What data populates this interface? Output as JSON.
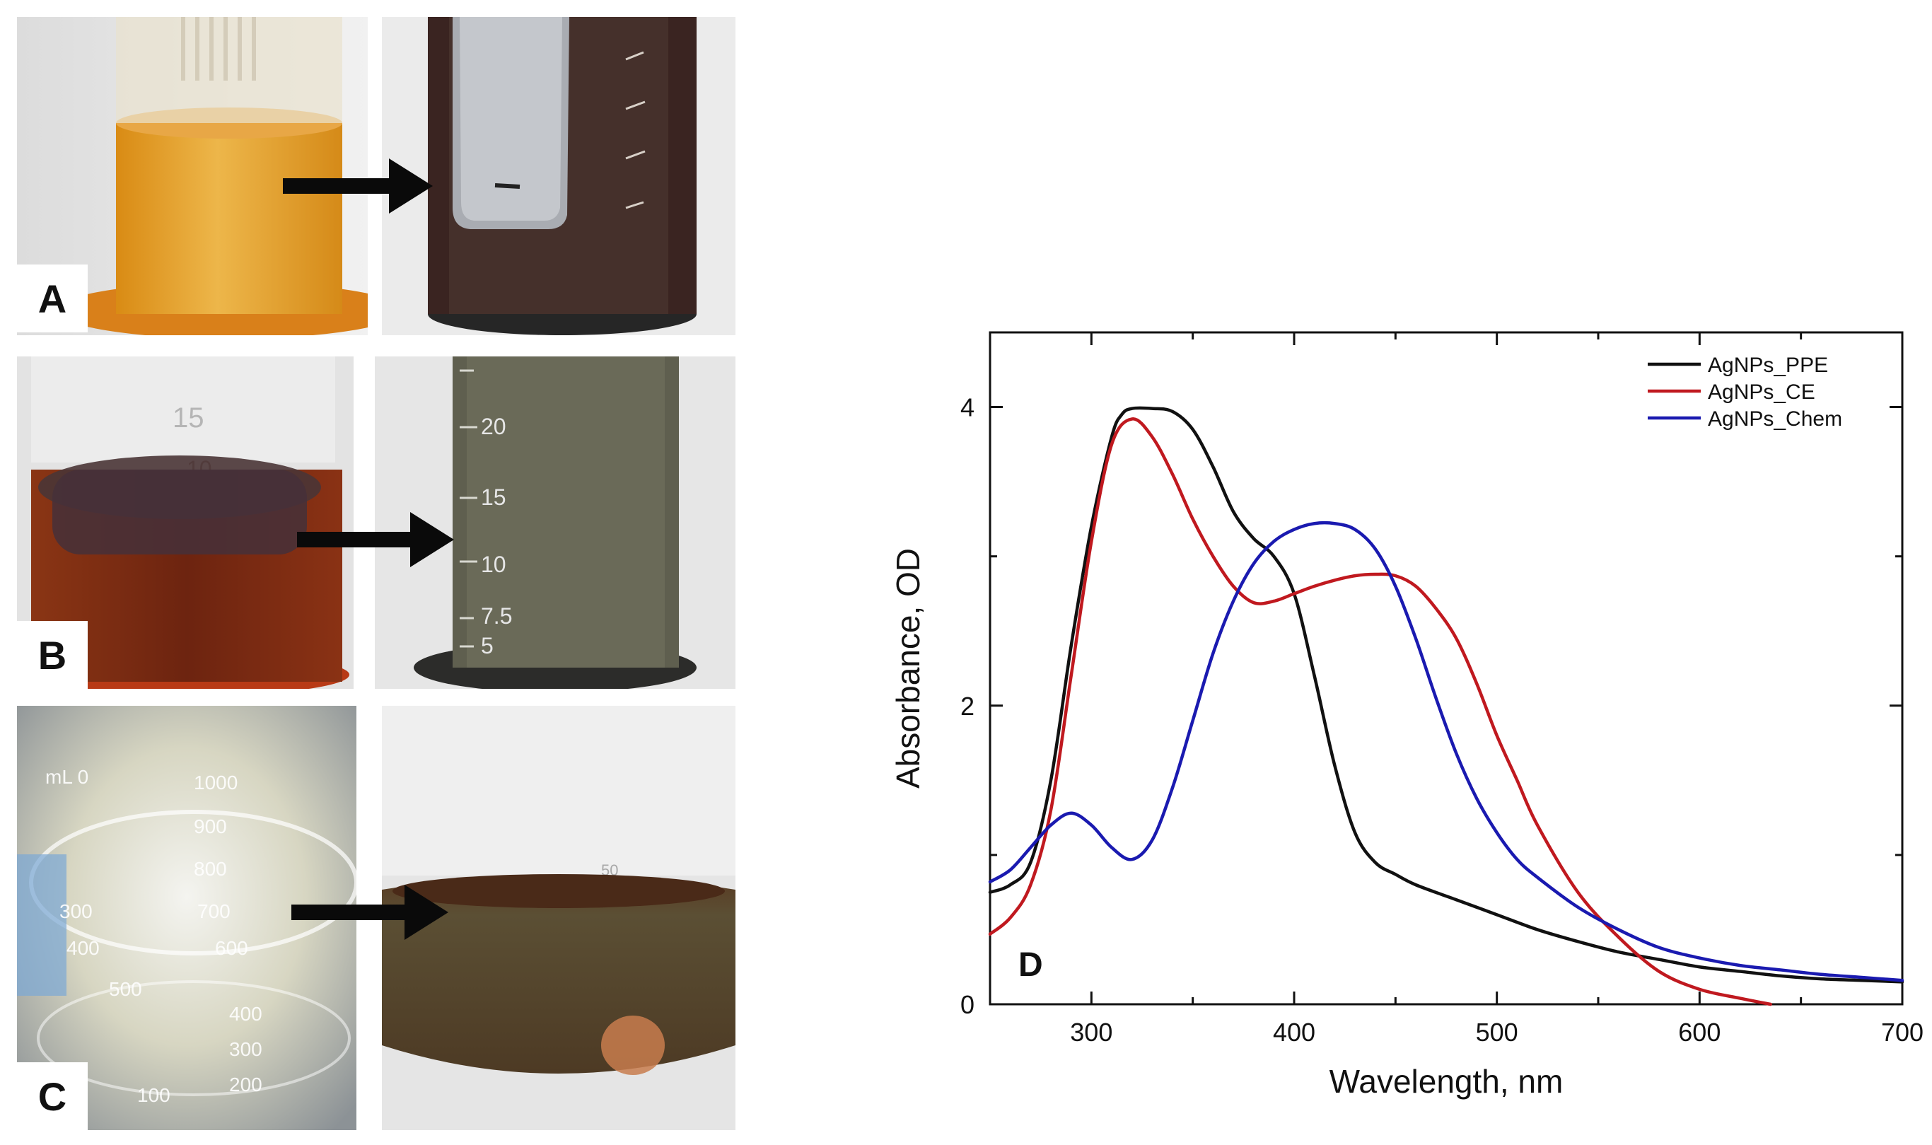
{
  "panels": {
    "A": "A",
    "B": "B",
    "C": "C",
    "D": "D"
  },
  "photo_text": {
    "b_left_grad": "15",
    "b_left_grad2": "10",
    "b_right_grads": [
      "20",
      "15",
      "10",
      "7.5",
      "5"
    ],
    "c_left_grads": [
      "mL 0",
      "1000",
      "900",
      "800",
      "700",
      "600",
      "300",
      "400",
      "500",
      "400",
      "300",
      "200",
      "100"
    ],
    "c_right_grad": "50"
  },
  "colors": {
    "ppe": "#111111",
    "ce": "#c0191f",
    "chem": "#1a1ab0",
    "orange_liquid": "#e39a1c",
    "dark_liquid": "#3b2420",
    "brown_liquid": "#7a2c12",
    "olive_liquid": "#5a5a48",
    "clear_liquid": "#d9d6b8",
    "olive_brown_liquid": "#5b4a30"
  },
  "chart_data": {
    "type": "line",
    "xlabel": "Wavelength, nm",
    "ylabel": "Absorbance, OD",
    "xlim": [
      250,
      700
    ],
    "ylim": [
      0,
      4.5
    ],
    "xticks": [
      300,
      400,
      500,
      600,
      700
    ],
    "yticks": [
      0,
      2,
      4
    ],
    "x_minor_step": 50,
    "y_minor_step": 1,
    "grid": false,
    "legend_position": "top-right",
    "panel_label": "D",
    "series": [
      {
        "name": "AgNPs_PPE",
        "color": "#111111",
        "x": [
          250,
          260,
          270,
          280,
          290,
          300,
          310,
          315,
          320,
          330,
          340,
          350,
          360,
          370,
          380,
          390,
          400,
          410,
          420,
          430,
          440,
          450,
          460,
          480,
          500,
          520,
          540,
          560,
          580,
          600,
          620,
          640,
          660,
          680,
          700
        ],
        "y": [
          0.75,
          0.8,
          0.95,
          1.5,
          2.4,
          3.2,
          3.8,
          3.95,
          3.99,
          3.99,
          3.97,
          3.85,
          3.6,
          3.3,
          3.12,
          3.0,
          2.75,
          2.2,
          1.6,
          1.15,
          0.95,
          0.87,
          0.8,
          0.7,
          0.6,
          0.5,
          0.42,
          0.35,
          0.3,
          0.25,
          0.22,
          0.19,
          0.17,
          0.16,
          0.15
        ]
      },
      {
        "name": "AgNPs_CE",
        "color": "#c0191f",
        "x": [
          250,
          260,
          270,
          280,
          290,
          300,
          310,
          320,
          330,
          340,
          350,
          360,
          370,
          380,
          390,
          400,
          410,
          420,
          430,
          440,
          450,
          460,
          470,
          480,
          490,
          500,
          510,
          520,
          540,
          560,
          580,
          600,
          620,
          635
        ],
        "y": [
          0.47,
          0.58,
          0.8,
          1.3,
          2.2,
          3.1,
          3.75,
          3.92,
          3.8,
          3.55,
          3.25,
          3.0,
          2.8,
          2.69,
          2.7,
          2.75,
          2.8,
          2.84,
          2.87,
          2.88,
          2.87,
          2.8,
          2.65,
          2.45,
          2.15,
          1.8,
          1.5,
          1.2,
          0.75,
          0.45,
          0.22,
          0.1,
          0.04,
          0.0
        ]
      },
      {
        "name": "AgNPs_Chem",
        "color": "#1a1ab0",
        "x": [
          250,
          260,
          270,
          280,
          290,
          300,
          310,
          320,
          330,
          340,
          350,
          360,
          370,
          380,
          390,
          400,
          410,
          420,
          430,
          440,
          450,
          460,
          470,
          480,
          490,
          500,
          510,
          520,
          540,
          560,
          580,
          600,
          620,
          640,
          660,
          680,
          700
        ],
        "y": [
          0.82,
          0.9,
          1.05,
          1.2,
          1.28,
          1.2,
          1.05,
          0.97,
          1.1,
          1.45,
          1.9,
          2.35,
          2.7,
          2.95,
          3.1,
          3.18,
          3.22,
          3.22,
          3.18,
          3.05,
          2.8,
          2.45,
          2.05,
          1.68,
          1.38,
          1.15,
          0.97,
          0.85,
          0.65,
          0.5,
          0.38,
          0.31,
          0.26,
          0.23,
          0.2,
          0.18,
          0.16
        ]
      }
    ]
  }
}
